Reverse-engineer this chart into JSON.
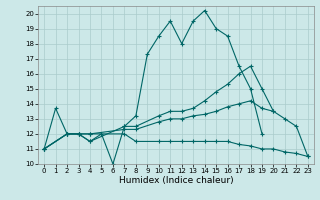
{
  "xlabel": "Humidex (Indice chaleur)",
  "bg_color": "#cce8e8",
  "grid_color": "#aacccc",
  "line_color": "#006666",
  "xlim": [
    -0.5,
    23.5
  ],
  "ylim": [
    10,
    20.5
  ],
  "xticks": [
    0,
    1,
    2,
    3,
    4,
    5,
    6,
    7,
    8,
    9,
    10,
    11,
    12,
    13,
    14,
    15,
    16,
    17,
    18,
    19,
    20,
    21,
    22,
    23
  ],
  "yticks": [
    10,
    11,
    12,
    13,
    14,
    15,
    16,
    17,
    18,
    19,
    20
  ],
  "line1_x": [
    0,
    1,
    2,
    3,
    4,
    5,
    6,
    7,
    8,
    9,
    10,
    11,
    12,
    13,
    14,
    15,
    16,
    17,
    18,
    19
  ],
  "line1_y": [
    11,
    13.7,
    12,
    12,
    11.5,
    12,
    10,
    12.5,
    13.2,
    17.3,
    18.5,
    19.5,
    18,
    19.5,
    20.2,
    19,
    18.5,
    16.5,
    15,
    12
  ],
  "line2_x": [
    0,
    2,
    3,
    4,
    7,
    8,
    10,
    11,
    12,
    13,
    14,
    15,
    16,
    17,
    18,
    19,
    20,
    21,
    22,
    23
  ],
  "line2_y": [
    11,
    12,
    12,
    11.5,
    12.5,
    12.5,
    13.2,
    13.5,
    13.5,
    13.7,
    14.2,
    14.8,
    15.3,
    16,
    16.5,
    15,
    13.5,
    13,
    12.5,
    10.5
  ],
  "line3_x": [
    0,
    2,
    3,
    4,
    7,
    8,
    10,
    11,
    12,
    13,
    14,
    15,
    16,
    17,
    18,
    19,
    20
  ],
  "line3_y": [
    11,
    12,
    12,
    12,
    12.3,
    12.3,
    12.8,
    13,
    13,
    13.2,
    13.3,
    13.5,
    13.8,
    14,
    14.2,
    13.7,
    13.5
  ],
  "line4_x": [
    0,
    2,
    3,
    4,
    7,
    8,
    10,
    11,
    12,
    13,
    14,
    15,
    16,
    17,
    18,
    19,
    20,
    21,
    22,
    23
  ],
  "line4_y": [
    11,
    12,
    12,
    12,
    12,
    11.5,
    11.5,
    11.5,
    11.5,
    11.5,
    11.5,
    11.5,
    11.5,
    11.3,
    11.2,
    11,
    11,
    10.8,
    10.7,
    10.5
  ]
}
